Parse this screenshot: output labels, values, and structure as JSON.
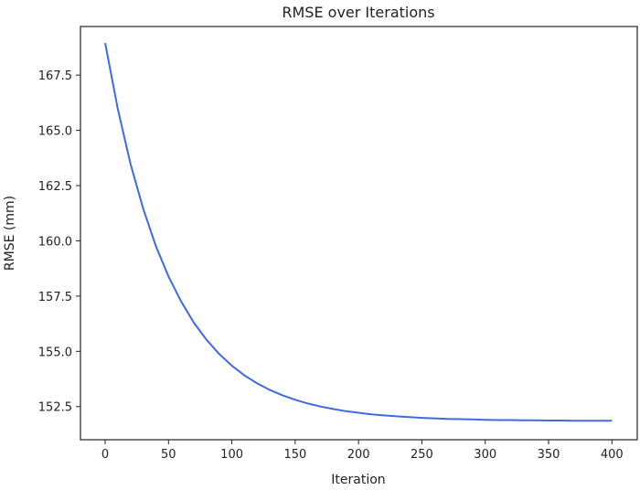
{
  "chart_data": {
    "type": "line",
    "title": "RMSE over Iterations",
    "xlabel": "Iteration",
    "ylabel": "RMSE (mm)",
    "xlim": [
      -19.5,
      420
    ],
    "ylim": [
      151.0,
      169.7
    ],
    "xticks": [
      0,
      50,
      100,
      150,
      200,
      250,
      300,
      350,
      400
    ],
    "yticks": [
      152.5,
      155.0,
      157.5,
      160.0,
      162.5,
      165.0,
      167.5
    ],
    "ytick_labels": [
      "152.5",
      "155.0",
      "157.5",
      "160.0",
      "162.5",
      "165.0",
      "167.5"
    ],
    "grid": false,
    "color": "#4169e1",
    "x": [
      0,
      10,
      20,
      30,
      40,
      50,
      60,
      70,
      80,
      90,
      100,
      110,
      120,
      130,
      140,
      150,
      160,
      170,
      180,
      190,
      200,
      210,
      220,
      230,
      240,
      250,
      260,
      270,
      280,
      290,
      300,
      310,
      320,
      330,
      340,
      350,
      360,
      370,
      380,
      390,
      400
    ],
    "y": [
      168.95,
      165.96,
      163.49,
      161.46,
      159.77,
      158.39,
      157.25,
      156.3,
      155.52,
      154.88,
      154.35,
      153.91,
      153.55,
      153.25,
      153.01,
      152.81,
      152.64,
      152.5,
      152.39,
      152.29,
      152.22,
      152.15,
      152.1,
      152.06,
      152.02,
      151.99,
      151.97,
      151.94,
      151.93,
      151.92,
      151.9,
      151.89,
      151.89,
      151.88,
      151.88,
      151.87,
      151.87,
      151.86,
      151.86,
      151.86,
      151.86
    ]
  }
}
